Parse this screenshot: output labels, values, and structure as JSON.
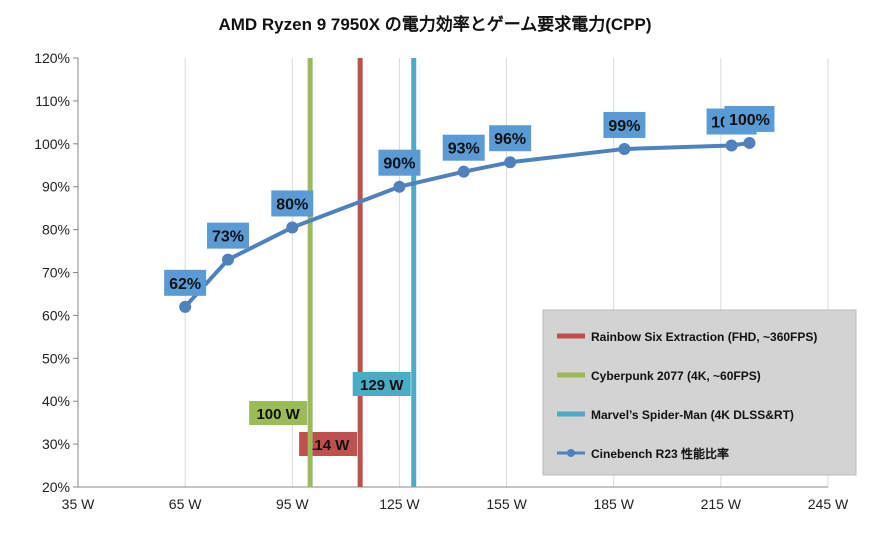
{
  "chart_data": {
    "type": "line",
    "title": "AMD Ryzen 9 7950X の電力効率とゲーム要求電力(CPP)",
    "xlabel": "",
    "ylabel": "",
    "xlim": [
      35,
      245
    ],
    "ylim": [
      20,
      120
    ],
    "x_ticks": [
      35,
      65,
      95,
      125,
      155,
      185,
      215,
      245
    ],
    "x_tick_labels": [
      "35 W",
      "65 W",
      "95 W",
      "125 W",
      "155 W",
      "185 W",
      "215 W",
      "245 W"
    ],
    "y_ticks": [
      20,
      30,
      40,
      50,
      60,
      70,
      80,
      90,
      100,
      110,
      120
    ],
    "y_tick_labels": [
      "20%",
      "30%",
      "40%",
      "50%",
      "60%",
      "70%",
      "80%",
      "90%",
      "100%",
      "110%",
      "120%"
    ],
    "grid": "vertical",
    "legend_position": "bottom-right",
    "series": [
      {
        "name": "Cinebench R23 性能比率",
        "color": "#4f81bd",
        "x": [
          65,
          77,
          95,
          125,
          143,
          156,
          188,
          218,
          223
        ],
        "y": [
          62,
          73,
          80.5,
          90,
          93.5,
          95.7,
          98.8,
          99.6,
          100.2
        ],
        "labels": [
          "62%",
          "73%",
          "80%",
          "90%",
          "93%",
          "96%",
          "99%",
          "100%",
          "100%"
        ]
      }
    ],
    "reference_lines": [
      {
        "name": "Rainbow Six Extraction (FHD, ~360FPS)",
        "x": 114,
        "label": "114 W",
        "color": "#c0504d"
      },
      {
        "name": "Cyberpunk 2077 (4K, ~60FPS)",
        "x": 100,
        "label": "100 W",
        "color": "#9bbb59"
      },
      {
        "name": "Marvel’s Spider-Man (4K DLSS&RT)",
        "x": 129,
        "label": "129 W",
        "color": "#4bacc6"
      }
    ],
    "colors": {
      "data_label_bg": "#5b9bd5",
      "legend_bg": "#d3d3d3",
      "grid": "#d9d9d9"
    }
  }
}
